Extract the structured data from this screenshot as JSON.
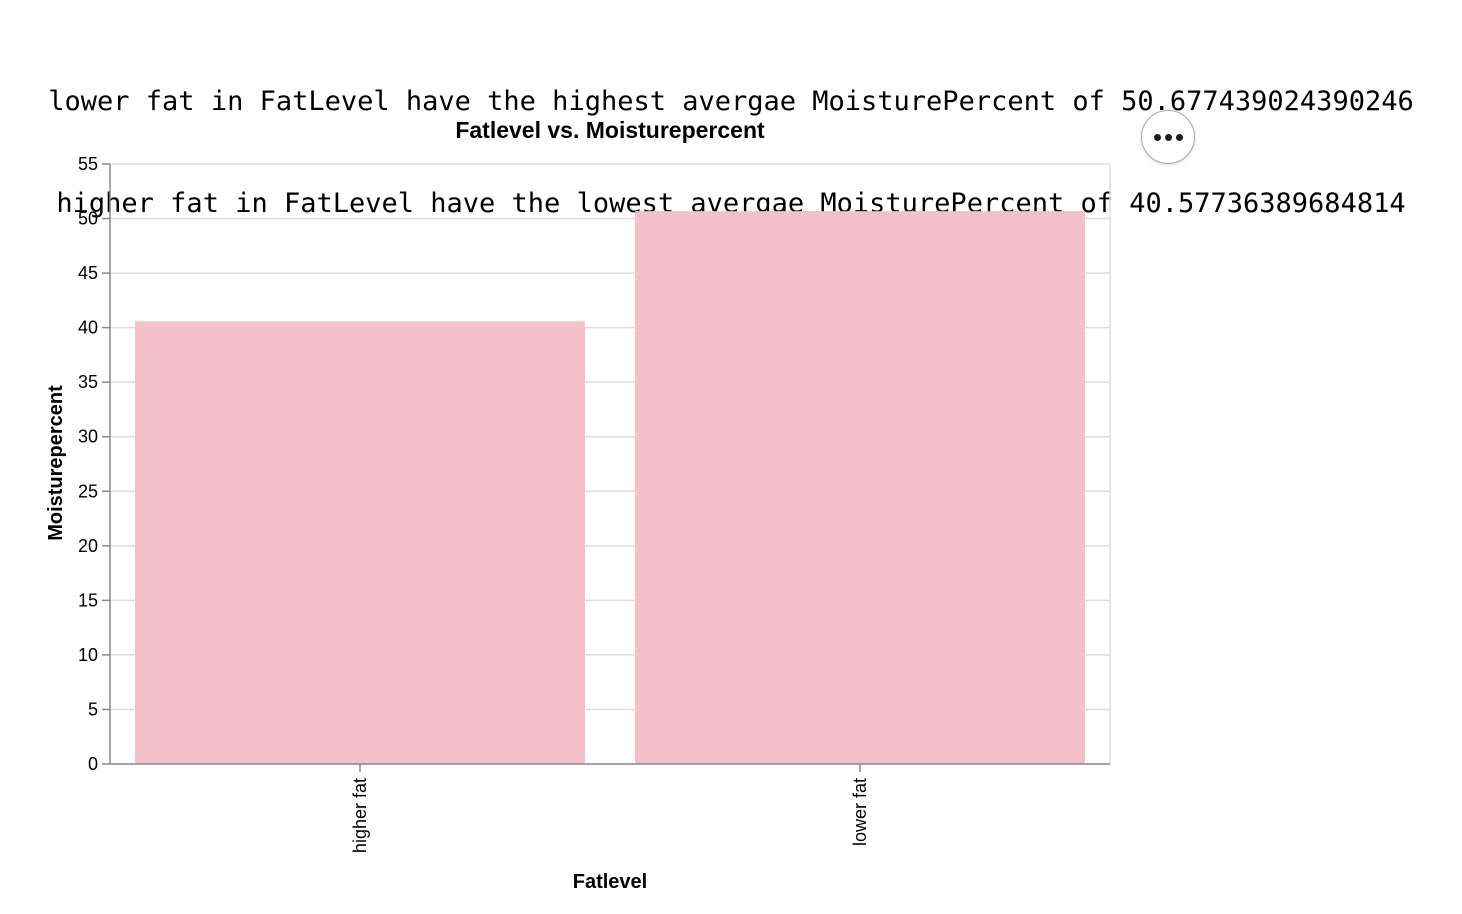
{
  "summary": {
    "line1": "lower fat in FatLevel have the highest avergae MoisturePercent of 50.677439024390246",
    "line2": "higher fat in FatLevel have the lowest avergae MoisturePercent of 40.57736389684814"
  },
  "menu": {
    "icon": "ellipsis-icon"
  },
  "colors": {
    "bar": "#f4c0cb",
    "grid": "#dddddd",
    "axis": "#888888",
    "text": "#000000"
  },
  "chart_data": {
    "type": "bar",
    "title": "Fatlevel vs. Moisturepercent",
    "xlabel": "Fatlevel",
    "ylabel": "Moisturepercent",
    "categories": [
      "higher fat",
      "lower fat"
    ],
    "values": [
      40.57736389684814,
      50.677439024390246
    ],
    "ylim": [
      0,
      55
    ],
    "yticks": [
      0,
      5,
      10,
      15,
      20,
      25,
      30,
      35,
      40,
      45,
      50,
      55
    ],
    "grid": true,
    "legend": "none"
  }
}
